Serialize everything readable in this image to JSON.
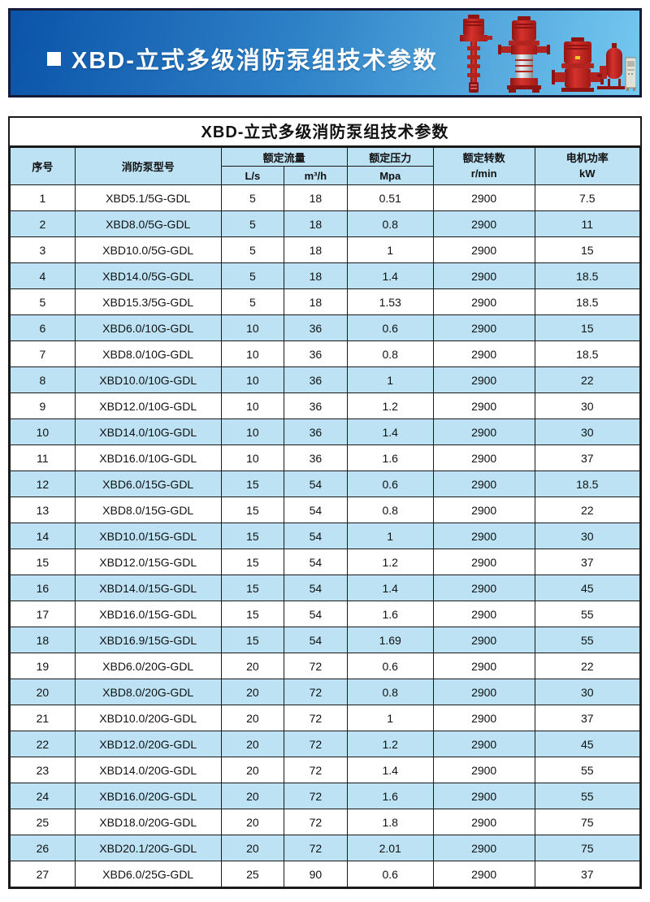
{
  "banner": {
    "bullet": "■",
    "title": "XBD-立式多级消防泵组技术参数",
    "pump_icons": [
      "long-shaft-fire-pump",
      "vertical-multistage-pump",
      "vertical-inline-pump",
      "pressure-tank-and-control-cabinet"
    ]
  },
  "table": {
    "title": "XBD-立式多级消防泵组技术参数",
    "headers": {
      "serial": "序号",
      "model": "消防泵型号",
      "flow": "额定流量",
      "flow_ls": "L/s",
      "flow_m3h": "m³/h",
      "pressure": "额定压力",
      "pressure_unit": "Mpa",
      "speed": "额定转数",
      "speed_unit": "r/min",
      "power": "电机功率",
      "power_unit": "kW"
    },
    "rows": [
      [
        "1",
        "XBD5.1/5G-GDL",
        "5",
        "18",
        "0.51",
        "2900",
        "7.5"
      ],
      [
        "2",
        "XBD8.0/5G-GDL",
        "5",
        "18",
        "0.8",
        "2900",
        "11"
      ],
      [
        "3",
        "XBD10.0/5G-GDL",
        "5",
        "18",
        "1",
        "2900",
        "15"
      ],
      [
        "4",
        "XBD14.0/5G-GDL",
        "5",
        "18",
        "1.4",
        "2900",
        "18.5"
      ],
      [
        "5",
        "XBD15.3/5G-GDL",
        "5",
        "18",
        "1.53",
        "2900",
        "18.5"
      ],
      [
        "6",
        "XBD6.0/10G-GDL",
        "10",
        "36",
        "0.6",
        "2900",
        "15"
      ],
      [
        "7",
        "XBD8.0/10G-GDL",
        "10",
        "36",
        "0.8",
        "2900",
        "18.5"
      ],
      [
        "8",
        "XBD10.0/10G-GDL",
        "10",
        "36",
        "1",
        "2900",
        "22"
      ],
      [
        "9",
        "XBD12.0/10G-GDL",
        "10",
        "36",
        "1.2",
        "2900",
        "30"
      ],
      [
        "10",
        "XBD14.0/10G-GDL",
        "10",
        "36",
        "1.4",
        "2900",
        "30"
      ],
      [
        "11",
        "XBD16.0/10G-GDL",
        "10",
        "36",
        "1.6",
        "2900",
        "37"
      ],
      [
        "12",
        "XBD6.0/15G-GDL",
        "15",
        "54",
        "0.6",
        "2900",
        "18.5"
      ],
      [
        "13",
        "XBD8.0/15G-GDL",
        "15",
        "54",
        "0.8",
        "2900",
        "22"
      ],
      [
        "14",
        "XBD10.0/15G-GDL",
        "15",
        "54",
        "1",
        "2900",
        "30"
      ],
      [
        "15",
        "XBD12.0/15G-GDL",
        "15",
        "54",
        "1.2",
        "2900",
        "37"
      ],
      [
        "16",
        "XBD14.0/15G-GDL",
        "15",
        "54",
        "1.4",
        "2900",
        "45"
      ],
      [
        "17",
        "XBD16.0/15G-GDL",
        "15",
        "54",
        "1.6",
        "2900",
        "55"
      ],
      [
        "18",
        "XBD16.9/15G-GDL",
        "15",
        "54",
        "1.69",
        "2900",
        "55"
      ],
      [
        "19",
        "XBD6.0/20G-GDL",
        "20",
        "72",
        "0.6",
        "2900",
        "22"
      ],
      [
        "20",
        "XBD8.0/20G-GDL",
        "20",
        "72",
        "0.8",
        "2900",
        "30"
      ],
      [
        "21",
        "XBD10.0/20G-GDL",
        "20",
        "72",
        "1",
        "2900",
        "37"
      ],
      [
        "22",
        "XBD12.0/20G-GDL",
        "20",
        "72",
        "1.2",
        "2900",
        "45"
      ],
      [
        "23",
        "XBD14.0/20G-GDL",
        "20",
        "72",
        "1.4",
        "2900",
        "55"
      ],
      [
        "24",
        "XBD16.0/20G-GDL",
        "20",
        "72",
        "1.6",
        "2900",
        "55"
      ],
      [
        "25",
        "XBD18.0/20G-GDL",
        "20",
        "72",
        "1.8",
        "2900",
        "75"
      ],
      [
        "26",
        "XBD20.1/20G-GDL",
        "20",
        "72",
        "2.01",
        "2900",
        "75"
      ],
      [
        "27",
        "XBD6.0/25G-GDL",
        "25",
        "90",
        "0.6",
        "2900",
        "37"
      ]
    ]
  },
  "css_colors": {
    "banner-g1": "#0b53a9",
    "banner-g2": "#2e82c7",
    "banner-g3": "#74c9f0",
    "banner-border": "#151c3a",
    "table-blue": "#bce2f4",
    "table-border": "#1a1a1a"
  }
}
